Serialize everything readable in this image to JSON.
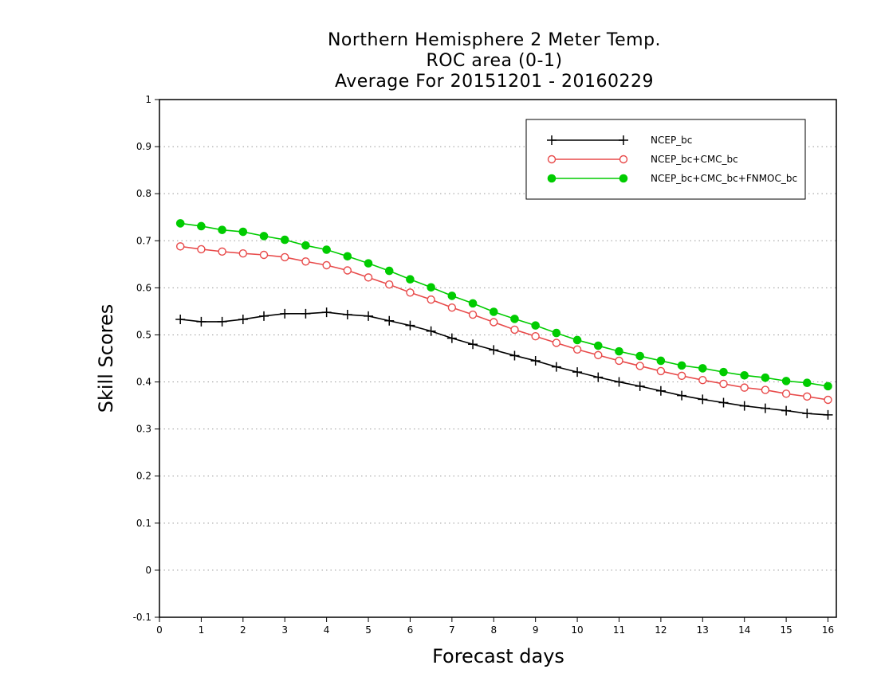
{
  "chart_data": {
    "type": "line",
    "title_lines": [
      "Northern Hemisphere 2 Meter Temp.",
      "ROC area (0-1)",
      "Average For 20151201 - 20160229"
    ],
    "xlabel": "Forecast days",
    "ylabel": "Skill Scores",
    "xlim": [
      0,
      16.2
    ],
    "ylim": [
      -0.1,
      1
    ],
    "x_ticks": [
      0,
      1,
      2,
      3,
      4,
      5,
      6,
      7,
      8,
      9,
      10,
      11,
      12,
      13,
      14,
      15,
      16
    ],
    "y_ticks": [
      -0.1,
      0,
      0.1,
      0.2,
      0.3,
      0.4,
      0.5,
      0.6,
      0.7,
      0.8,
      0.9,
      1
    ],
    "y_tick_labels": [
      "-0.1",
      "0",
      "0.1",
      "0.2",
      "0.3",
      "0.4",
      "0.5",
      "0.6",
      "0.7",
      "0.8",
      "0.9",
      "1"
    ],
    "grid": "horizontal dotted",
    "legend_position": "top-right",
    "x": [
      0.5,
      1.0,
      1.5,
      2.0,
      2.5,
      3.0,
      3.5,
      4.0,
      4.5,
      5.0,
      5.5,
      6.0,
      6.5,
      7.0,
      7.5,
      8.0,
      8.5,
      9.0,
      9.5,
      10.0,
      10.5,
      11.0,
      11.5,
      12.0,
      12.5,
      13.0,
      13.5,
      14.0,
      14.5,
      15.0,
      15.5,
      16.0
    ],
    "series": [
      {
        "name": "NCEP_bc",
        "color": "#000000",
        "marker": "plus",
        "values": [
          0.533,
          0.528,
          0.528,
          0.533,
          0.54,
          0.545,
          0.545,
          0.548,
          0.543,
          0.54,
          0.53,
          0.52,
          0.508,
          0.493,
          0.48,
          0.468,
          0.456,
          0.445,
          0.432,
          0.421,
          0.41,
          0.4,
          0.391,
          0.381,
          0.371,
          0.363,
          0.356,
          0.349,
          0.344,
          0.339,
          0.333,
          0.33
        ]
      },
      {
        "name": "NCEP_bc+CMC_bc",
        "color": "#e84a4a",
        "marker": "open-circle",
        "values": [
          0.688,
          0.682,
          0.677,
          0.673,
          0.67,
          0.665,
          0.656,
          0.648,
          0.637,
          0.622,
          0.607,
          0.59,
          0.575,
          0.558,
          0.543,
          0.527,
          0.511,
          0.497,
          0.483,
          0.469,
          0.457,
          0.445,
          0.434,
          0.423,
          0.413,
          0.404,
          0.396,
          0.388,
          0.383,
          0.375,
          0.369,
          0.362
        ]
      },
      {
        "name": "NCEP_bc+CMC_bc+FNMOC_bc",
        "color": "#00cc00",
        "marker": "filled-circle",
        "values": [
          0.737,
          0.731,
          0.723,
          0.719,
          0.71,
          0.702,
          0.69,
          0.681,
          0.667,
          0.652,
          0.636,
          0.618,
          0.601,
          0.583,
          0.567,
          0.549,
          0.534,
          0.52,
          0.504,
          0.489,
          0.477,
          0.465,
          0.455,
          0.445,
          0.435,
          0.429,
          0.421,
          0.414,
          0.409,
          0.402,
          0.398,
          0.391
        ]
      }
    ]
  }
}
